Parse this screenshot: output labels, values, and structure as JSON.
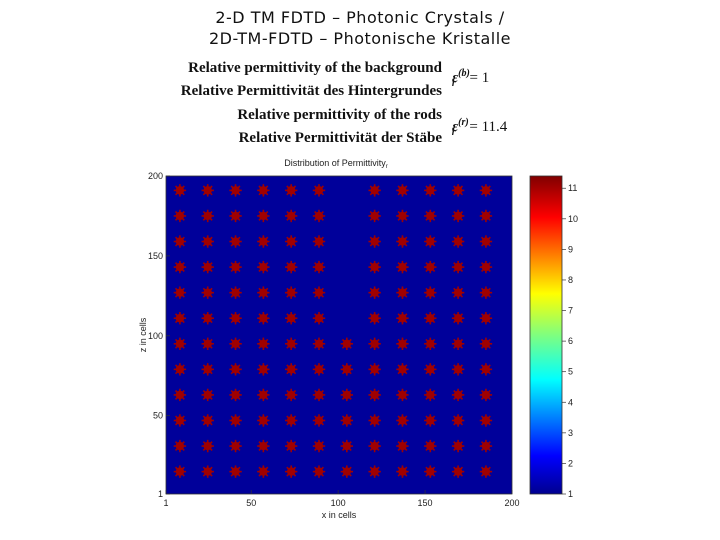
{
  "header": {
    "title_line1": "2-D TM FDTD – Photonic Crystals /",
    "title_line2": "2D-TM-FDTD – Photonische Kristalle"
  },
  "legend": {
    "bg_en": "Relative permittivity of the background",
    "bg_de": "Relative Permittivität des Hintergrundes",
    "rods_en": "Relative permittivity of the rods",
    "rods_de": "Relative Permittivität der Stäbe",
    "bg_symbol": "ε",
    "bg_sub": "r",
    "bg_sup": "(b)",
    "bg_value": "= 1",
    "rods_symbol": "ε",
    "rods_sub": "r",
    "rods_sup": "(r)",
    "rods_value": "= 11.4"
  },
  "colors": {
    "background": "#00009a",
    "rod": "#a00000"
  },
  "chart_data": {
    "type": "heatmap",
    "title": "Distribution of Permittivity",
    "title_suffix": "r",
    "xlabel": "x in cells",
    "ylabel": "z in cells",
    "xlim": [
      1,
      200
    ],
    "ylim": [
      1,
      200
    ],
    "xticks": [
      "1",
      "50",
      "100",
      "150",
      "200"
    ],
    "yticks": [
      "1",
      "50",
      "100",
      "150",
      "200"
    ],
    "background_value": 1,
    "rod_value": 11.4,
    "rod_x_centers": [
      9,
      25,
      41,
      57,
      73,
      89,
      105,
      121,
      137,
      153,
      169,
      185
    ],
    "rod_z_centers": [
      15,
      31,
      47,
      63,
      79,
      95,
      111,
      127,
      143,
      159,
      175,
      191
    ],
    "missing_rods_x": [
      105
    ],
    "missing_rods_z_min": 111,
    "colorbar": {
      "min": 1,
      "max": 11.4,
      "ticks": [
        "1",
        "2",
        "3",
        "4",
        "5",
        "6",
        "7",
        "8",
        "9",
        "10",
        "11"
      ]
    }
  }
}
